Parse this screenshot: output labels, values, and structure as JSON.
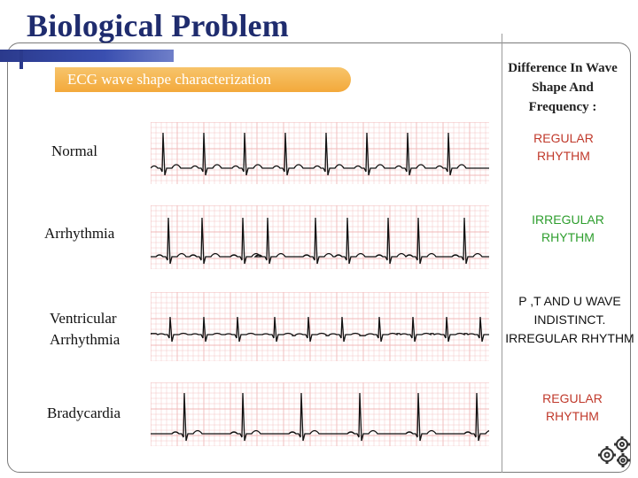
{
  "slide": {
    "title": "Biological Problem",
    "banner": "ECG wave shape characterization",
    "diff_heading": [
      "Difference In Wave",
      "Shape And",
      "Frequency :"
    ]
  },
  "rows": [
    {
      "label": [
        "Normal"
      ],
      "rhythm": [
        "REGULAR",
        "RHYTHM"
      ],
      "rhythm_color": "#c0392b"
    },
    {
      "label": [
        "Arrhythmia"
      ],
      "rhythm": [
        "IRREGULAR",
        "RHYTHM"
      ],
      "rhythm_color": "#2e9e2e"
    },
    {
      "label": [
        "Ventricular",
        "Arrhythmia"
      ],
      "rhythm": [
        "P ,T AND U WAVE",
        "INDISTINCT.",
        "IRREGULAR RHYTHM"
      ],
      "rhythm_color": "#111111"
    },
    {
      "label": [
        "Bradycardia"
      ],
      "rhythm": [
        "REGULAR",
        "RHYTHM"
      ],
      "rhythm_color": "#c0392b"
    }
  ],
  "colors": {
    "title": "#1f2c6e",
    "banner": "#f3a93b",
    "ecg_grid": "#f1b8b8",
    "ecg_trace": "#111111"
  },
  "icons": {
    "corner": "gears-icon"
  }
}
